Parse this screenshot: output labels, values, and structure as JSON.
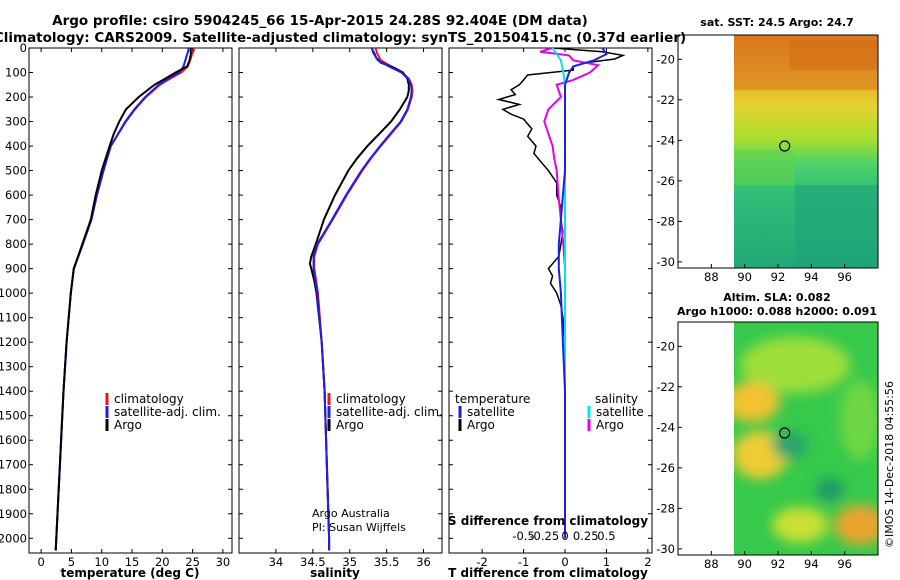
{
  "title": {
    "line1": "Argo profile: csiro 5904245_66 15-Apr-2015 24.28S 92.404E (DM data)",
    "line2": "Climatology: CARS2009. Satellite-adjusted climatology: synTS_20150415.nc (0.37d earlier)"
  },
  "colors": {
    "clim": "#e8141e",
    "sat": "#1e1ee6",
    "argo": "#000000",
    "sat_s": "#00e5e5",
    "argo_s": "#e800e8"
  },
  "depth_axis": {
    "ylim": [
      0,
      2060
    ],
    "ticks": [
      "0",
      "100",
      "200",
      "300",
      "400",
      "500",
      "600",
      "700",
      "800",
      "900",
      "1000",
      "1100",
      "1200",
      "1300",
      "1400",
      "1500",
      "1600",
      "1700",
      "1800",
      "1900",
      "2000"
    ]
  },
  "chart_data": [
    {
      "type": "line",
      "id": "temperature",
      "xlabel": "temperature (deg C)",
      "xlim": [
        -2,
        31.5
      ],
      "xticks": [
        "0",
        "5",
        "10",
        "15",
        "20",
        "25",
        "30"
      ],
      "legend": [
        "climatology",
        "satellite-adj. clim.",
        "Argo"
      ],
      "series": [
        {
          "name": "climatology",
          "depth": [
            0,
            10,
            25,
            50,
            75,
            100,
            125,
            150,
            200,
            250,
            300,
            400,
            500,
            600,
            700,
            800,
            900,
            1000,
            1200,
            1400,
            1600,
            1800,
            2000,
            2050
          ],
          "values": [
            25.2,
            25.2,
            24.9,
            24.6,
            24.2,
            23.1,
            21.3,
            19.6,
            17.3,
            15.5,
            14.0,
            11.5,
            10.3,
            9.2,
            8.3,
            6.9,
            5.4,
            4.9,
            4.2,
            3.7,
            3.3,
            2.9,
            2.5,
            2.4
          ]
        },
        {
          "name": "satellite-adj. clim.",
          "depth": [
            0,
            10,
            25,
            50,
            75,
            100,
            125,
            150,
            200,
            250,
            300,
            400,
            500,
            600,
            700,
            800,
            900,
            1000,
            1200,
            1400,
            1600,
            1800,
            2000,
            2050
          ],
          "values": [
            24.3,
            24.3,
            24.1,
            23.8,
            23.5,
            22.8,
            21.0,
            19.4,
            17.2,
            15.4,
            13.9,
            11.5,
            10.3,
            9.2,
            8.3,
            6.9,
            5.4,
            4.9,
            4.2,
            3.7,
            3.3,
            2.9,
            2.5,
            2.4
          ]
        },
        {
          "name": "Argo",
          "depth": [
            0,
            10,
            25,
            50,
            75,
            100,
            125,
            150,
            200,
            250,
            300,
            350,
            400,
            500,
            600,
            700,
            800,
            900,
            1000,
            1200,
            1400,
            1600,
            1800,
            2000,
            2050
          ],
          "values": [
            24.7,
            24.7,
            24.7,
            24.5,
            24.1,
            22.2,
            20.5,
            18.7,
            16.1,
            14.0,
            12.9,
            12.0,
            11.3,
            10.0,
            9.0,
            8.2,
            6.8,
            5.4,
            4.9,
            4.2,
            3.7,
            3.3,
            2.9,
            2.5,
            2.4
          ]
        }
      ]
    },
    {
      "type": "line",
      "id": "salinity",
      "xlabel": "salinity",
      "xlim": [
        33.5,
        36.25
      ],
      "xticks": [
        "34",
        "34.5",
        "35",
        "35.5",
        "36"
      ],
      "legend": [
        "climatology",
        "satellite-adj. clim.",
        "Argo"
      ],
      "credits": [
        "Argo Australia",
        "PI: Susan Wijffels"
      ],
      "series": [
        {
          "name": "climatology",
          "depth": [
            0,
            20,
            50,
            75,
            100,
            125,
            150,
            175,
            200,
            250,
            300,
            350,
            400,
            450,
            500,
            600,
            700,
            800,
            850,
            900,
            1000,
            1200,
            1400,
            1600,
            1800,
            2000,
            2050
          ],
          "values": [
            35.35,
            35.37,
            35.42,
            35.56,
            35.71,
            35.8,
            35.84,
            35.85,
            35.84,
            35.79,
            35.7,
            35.56,
            35.42,
            35.29,
            35.17,
            34.96,
            34.77,
            34.57,
            34.52,
            34.52,
            34.57,
            34.62,
            34.66,
            34.68,
            34.7,
            34.72,
            34.72
          ]
        },
        {
          "name": "satellite-adj. clim.",
          "depth": [
            0,
            20,
            50,
            75,
            100,
            125,
            150,
            175,
            200,
            250,
            300,
            350,
            400,
            450,
            500,
            600,
            700,
            800,
            850,
            900,
            1000,
            1200,
            1400,
            1600,
            1800,
            2000,
            2050
          ],
          "values": [
            35.3,
            35.32,
            35.38,
            35.53,
            35.7,
            35.79,
            35.83,
            35.84,
            35.83,
            35.78,
            35.69,
            35.55,
            35.41,
            35.28,
            35.16,
            34.95,
            34.76,
            34.56,
            34.51,
            34.51,
            34.56,
            34.62,
            34.66,
            34.68,
            34.7,
            34.72,
            34.72
          ]
        },
        {
          "name": "Argo",
          "depth": [
            0,
            10,
            20,
            40,
            60,
            80,
            100,
            125,
            150,
            175,
            200,
            250,
            300,
            350,
            400,
            450,
            500,
            600,
            700,
            800,
            850,
            880,
            900,
            950,
            1000,
            1200,
            1400,
            1600,
            1800,
            2000,
            2050
          ],
          "values": [
            35.3,
            35.31,
            35.33,
            35.36,
            35.42,
            35.6,
            35.72,
            35.78,
            35.8,
            35.8,
            35.78,
            35.68,
            35.56,
            35.4,
            35.24,
            35.1,
            34.98,
            34.8,
            34.65,
            34.54,
            34.48,
            34.46,
            34.48,
            34.52,
            34.55,
            34.62,
            34.66,
            34.68,
            34.7,
            34.72,
            34.72
          ]
        }
      ]
    },
    {
      "type": "line",
      "id": "difference",
      "xlabel": "T difference from climatology",
      "xlim": [
        -2.8,
        2.1
      ],
      "xticks": [
        "-2",
        "-1",
        "0",
        "1",
        "2"
      ],
      "s_xlabel": "S difference from climatology",
      "s_xticks": [
        "-0.5",
        "-0.25",
        "0",
        "0.25",
        "0.5"
      ],
      "legend": {
        "temperature_title": "temperature",
        "salinity_title": "salinity",
        "t_items": [
          "satellite",
          "Argo"
        ],
        "s_items": [
          "satellite",
          "Argo"
        ]
      },
      "series": [
        {
          "name": "T satellite",
          "depth": [
            0,
            25,
            50,
            75,
            100,
            150,
            200,
            300,
            400,
            500,
            600,
            700,
            800,
            900,
            1000,
            1200,
            1400,
            1600,
            1800,
            2000
          ],
          "values": [
            0.9,
            1.0,
            0.7,
            0.2,
            0.1,
            0.0,
            0.0,
            0.0,
            0.0,
            0.0,
            -0.05,
            -0.1,
            -0.15,
            -0.15,
            -0.1,
            -0.05,
            0.0,
            0.0,
            0.0,
            0.0
          ]
        },
        {
          "name": "T Argo",
          "depth": [
            0,
            15,
            30,
            45,
            60,
            75,
            90,
            110,
            130,
            150,
            170,
            190,
            210,
            230,
            250,
            270,
            290,
            310,
            330,
            360,
            400,
            430,
            460,
            500,
            550,
            600,
            650,
            700,
            750,
            800,
            850,
            880,
            900,
            930,
            960,
            1000,
            1050,
            1100,
            1200,
            1300,
            1400,
            1500,
            1600,
            1700,
            1800,
            1900,
            2000
          ],
          "values": [
            -0.3,
            0.9,
            1.4,
            1.2,
            0.5,
            0.2,
            0.2,
            -0.9,
            -1.0,
            -1.1,
            -1.3,
            -1.2,
            -1.6,
            -1.1,
            -1.5,
            -1.3,
            -1.0,
            -0.9,
            -0.8,
            -0.9,
            -0.7,
            -0.75,
            -0.6,
            -0.4,
            -0.2,
            -0.2,
            -0.1,
            -0.1,
            -0.05,
            -0.1,
            -0.15,
            -0.3,
            -0.4,
            -0.3,
            -0.35,
            -0.2,
            -0.1,
            -0.05,
            0.0,
            0.0,
            0.0,
            0.0,
            0.0,
            0.0,
            0.0,
            0.0,
            0.0
          ]
        },
        {
          "name": "S satellite",
          "depth": [
            0,
            50,
            100,
            150,
            200,
            300,
            400,
            500,
            600,
            700,
            800,
            900,
            1000,
            1200,
            1400,
            1600,
            1800,
            2000
          ],
          "values": [
            -0.15,
            -0.05,
            -0.02,
            0.0,
            0.0,
            0.0,
            0.0,
            0.0,
            0.0,
            0.0,
            0.0,
            0.0,
            0.0,
            0.0,
            0.0,
            0.0,
            0.0,
            0.0
          ]
        },
        {
          "name": "S Argo",
          "depth": [
            0,
            15,
            30,
            50,
            70,
            100,
            130,
            150,
            200,
            250,
            300,
            350,
            400,
            450,
            500,
            600,
            700,
            800,
            900,
            1000,
            1200,
            1400,
            1600,
            1800,
            2000
          ],
          "values": [
            -0.15,
            -0.3,
            0.05,
            0.1,
            0.4,
            0.3,
            0.1,
            -0.1,
            -0.05,
            -0.2,
            -0.25,
            -0.2,
            -0.15,
            -0.13,
            -0.1,
            -0.08,
            -0.05,
            -0.02,
            0.0,
            0.0,
            0.0,
            0.0,
            0.0,
            0.0,
            0.0
          ]
        }
      ]
    },
    {
      "type": "heatmap",
      "id": "sst_map",
      "title": "sat. SST: 24.5 Argo: 24.7",
      "xlim": [
        86,
        98
      ],
      "ylim": [
        -30.3,
        -18.8
      ],
      "xticks": [
        "88",
        "90",
        "92",
        "94",
        "96"
      ],
      "yticks": [
        "-20",
        "-22",
        "-24",
        "-26",
        "-28",
        "-30"
      ],
      "no_data_x_max": 90,
      "argo_position": {
        "lon": 92.4,
        "lat": -24.28
      }
    },
    {
      "type": "heatmap",
      "id": "sla_map",
      "title_line1": "Altim. SLA: 0.082",
      "title_line2": "Argo h1000: 0.088 h2000: 0.091",
      "xlim": [
        86,
        98
      ],
      "ylim": [
        -30.3,
        -18.8
      ],
      "xticks": [
        "88",
        "90",
        "92",
        "94",
        "96"
      ],
      "yticks": [
        "-20",
        "-22",
        "-24",
        "-26",
        "-28",
        "-30"
      ],
      "no_data_x_max": 90,
      "argo_position": {
        "lon": 92.4,
        "lat": -24.28
      }
    }
  ],
  "watermark": "©IMOS 14-Dec-2018 04:55:56"
}
